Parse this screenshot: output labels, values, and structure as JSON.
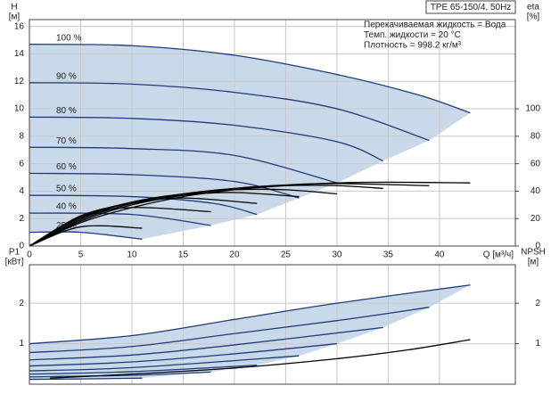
{
  "chart_data": [
    {
      "type": "line",
      "title": "TPE 65-150/4, 50Hz",
      "annotations": [
        "Перекачиваемая жидкость = Вода",
        "Темп. жидкости = 20 °C",
        "Плотность = 998.2 кг/м³"
      ],
      "x_label": "Q [м³/ч]",
      "y_label": "H",
      "y_unit": "[м]",
      "y2_label": "eta",
      "y2_unit": "[%]",
      "xlim": [
        0,
        47.4
      ],
      "xticks": [
        0,
        5,
        10,
        15,
        20,
        25,
        30,
        35,
        40
      ],
      "ylim": [
        0,
        16.5
      ],
      "yticks": [
        0,
        2,
        4,
        6,
        8,
        10,
        12,
        14,
        16
      ],
      "y2lim": [
        0,
        165
      ],
      "y2ticks": [
        0,
        20,
        40,
        60,
        80,
        100
      ],
      "grid": true,
      "shade_color": "#c9d9ea",
      "series": [
        {
          "name": "100 %",
          "color": "#1e3c78",
          "x": [
            0,
            10,
            20,
            30,
            38,
            43
          ],
          "values": [
            14.7,
            14.6,
            13.9,
            12.5,
            11,
            9.7
          ]
        },
        {
          "name": "90 %",
          "color": "#1e3c78",
          "x": [
            0,
            10,
            20,
            30,
            39
          ],
          "values": [
            11.9,
            11.8,
            11.2,
            10,
            7.7
          ]
        },
        {
          "name": "80 %",
          "color": "#1e3c78",
          "x": [
            0,
            10,
            20,
            30,
            34.5
          ],
          "values": [
            9.4,
            9.3,
            8.8,
            7.6,
            6.2
          ]
        },
        {
          "name": "70 %",
          "color": "#1e3c78",
          "x": [
            0,
            10,
            20,
            30
          ],
          "values": [
            7.2,
            7.1,
            6.6,
            4.6
          ]
        },
        {
          "name": "60 %",
          "color": "#1e3c78",
          "x": [
            0,
            10,
            20,
            26.3
          ],
          "values": [
            5.3,
            5.2,
            4.7,
            3.5
          ]
        },
        {
          "name": "50 %",
          "color": "#1e3c78",
          "x": [
            0,
            10,
            18,
            22.2
          ],
          "values": [
            3.7,
            3.6,
            3.1,
            2.3
          ]
        },
        {
          "name": "40 %",
          "color": "#1e3c78",
          "x": [
            0,
            10,
            17.7
          ],
          "values": [
            2.4,
            2.3,
            1.5
          ]
        },
        {
          "name": "25 %",
          "color": "#1e3c78",
          "x": [
            0,
            5,
            11
          ],
          "values": [
            1.0,
            1.0,
            0.5
          ]
        },
        {
          "axis": "y2",
          "color": "#000000",
          "x": [
            0,
            5,
            10,
            15,
            20,
            25,
            30,
            35,
            43
          ],
          "values": [
            0,
            17,
            28,
            36,
            41,
            44,
            46,
            46.5,
            46
          ]
        },
        {
          "axis": "y2",
          "color": "#000000",
          "x": [
            0,
            5,
            10,
            15,
            20,
            25,
            30,
            39
          ],
          "values": [
            0,
            18,
            30,
            37,
            42,
            44.5,
            45.5,
            44
          ]
        },
        {
          "axis": "y2",
          "color": "#000000",
          "x": [
            0,
            5,
            10,
            15,
            20,
            25,
            30,
            34.5
          ],
          "values": [
            0,
            19,
            31,
            38,
            42,
            44,
            44,
            42
          ]
        },
        {
          "axis": "y2",
          "color": "#000000",
          "x": [
            0,
            5,
            10,
            15,
            20,
            25,
            30
          ],
          "values": [
            0,
            20,
            32,
            38,
            41,
            41,
            38
          ]
        },
        {
          "axis": "y2",
          "color": "#000000",
          "x": [
            0,
            5,
            10,
            15,
            20,
            26.3
          ],
          "values": [
            0,
            21,
            32,
            37,
            39,
            36
          ]
        },
        {
          "axis": "y2",
          "color": "#000000",
          "x": [
            0,
            5,
            10,
            15,
            22.2
          ],
          "values": [
            0,
            22,
            31,
            35,
            31
          ]
        },
        {
          "axis": "y2",
          "color": "#000000",
          "x": [
            0,
            5,
            10,
            17.7
          ],
          "values": [
            0,
            21,
            28,
            25
          ]
        },
        {
          "axis": "y2",
          "color": "#000000",
          "x": [
            0,
            5,
            11
          ],
          "values": [
            0,
            14,
            13
          ]
        }
      ]
    },
    {
      "type": "line",
      "y_label": "P1",
      "y_unit": "[кВт]",
      "y2_label": "NPSH",
      "y2_unit": "[м]",
      "xlim": [
        0,
        47.4
      ],
      "xticks": [
        0,
        5,
        10,
        15,
        20,
        25,
        30,
        35,
        40
      ],
      "ylim": [
        0,
        2.95
      ],
      "yticks": [
        1,
        2
      ],
      "y2lim": [
        0,
        2.95
      ],
      "y2ticks": [
        1,
        2
      ],
      "grid": true,
      "shade_color": "#c9d9ea",
      "series": [
        {
          "color": "#1e3c78",
          "x": [
            0,
            10,
            20,
            30,
            43
          ],
          "values": [
            1.0,
            1.2,
            1.6,
            2.0,
            2.45
          ]
        },
        {
          "color": "#1e3c78",
          "x": [
            0,
            10,
            20,
            30,
            39
          ],
          "values": [
            0.78,
            0.93,
            1.25,
            1.57,
            1.9
          ]
        },
        {
          "color": "#1e3c78",
          "x": [
            0,
            10,
            20,
            34.5
          ],
          "values": [
            0.6,
            0.72,
            0.97,
            1.4
          ]
        },
        {
          "color": "#1e3c78",
          "x": [
            0,
            10,
            20,
            30
          ],
          "values": [
            0.45,
            0.55,
            0.75,
            1.0
          ]
        },
        {
          "color": "#1e3c78",
          "x": [
            0,
            10,
            26.3
          ],
          "values": [
            0.33,
            0.41,
            0.7
          ]
        },
        {
          "color": "#1e3c78",
          "x": [
            0,
            10,
            22.2
          ],
          "values": [
            0.25,
            0.31,
            0.47
          ]
        },
        {
          "color": "#1e3c78",
          "x": [
            0,
            10,
            17.7
          ],
          "values": [
            0.18,
            0.22,
            0.3
          ]
        },
        {
          "color": "#1e3c78",
          "x": [
            0,
            5,
            11
          ],
          "values": [
            0.12,
            0.13,
            0.15
          ]
        },
        {
          "axis": "y2",
          "color": "#000000",
          "x": [
            2,
            10,
            20,
            30,
            37,
            43
          ],
          "values": [
            0.15,
            0.25,
            0.4,
            0.63,
            0.85,
            1.1
          ]
        }
      ]
    }
  ]
}
